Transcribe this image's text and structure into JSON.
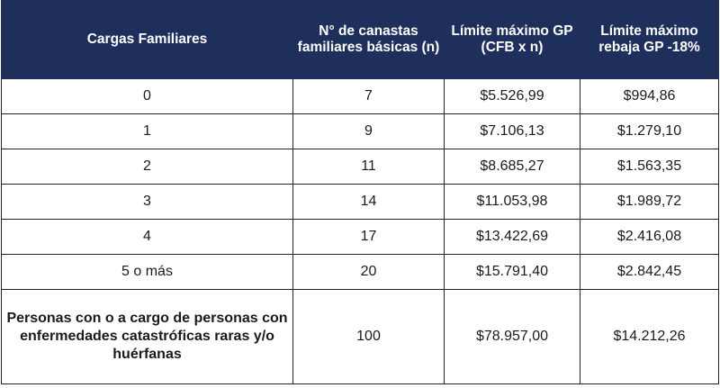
{
  "table": {
    "headers": [
      "Cargas Familiares",
      "N° de canastas familiares básicas (n)",
      "Límite máximo GP (CFB x n)",
      "Límite máximo rebaja GP -18%"
    ],
    "rows": [
      [
        "0",
        "7",
        "$5.526,99",
        "$994,86"
      ],
      [
        "1",
        "9",
        "$7.106,13",
        "$1.279,10"
      ],
      [
        "2",
        "11",
        "$8.685,27",
        "$1.563,35"
      ],
      [
        "3",
        "14",
        "$11.053,98",
        "$1.989,72"
      ],
      [
        "4",
        "17",
        "$13.422,69",
        "$2.416,08"
      ],
      [
        "5 o más",
        "20",
        "$15.791,40",
        "$2.842,45"
      ],
      [
        "Personas con o a cargo de personas con enfermedades catastróficas raras y/o huérfanas",
        "100",
        "$78.957,00",
        "$14.212,26"
      ]
    ]
  }
}
